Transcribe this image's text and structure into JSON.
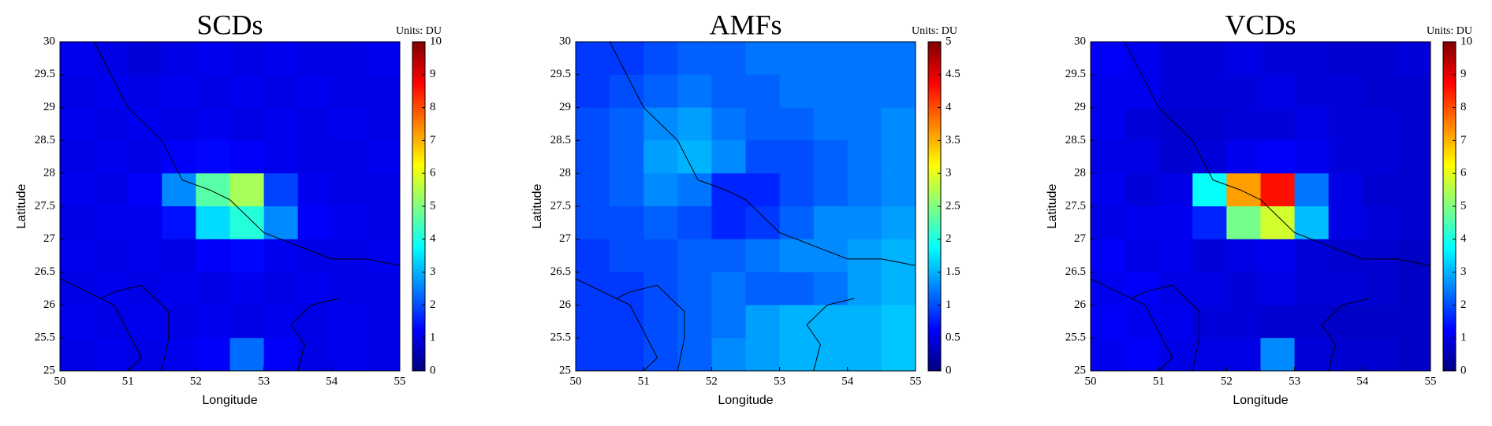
{
  "chart_data": [
    {
      "type": "heatmap",
      "title": "SCDs",
      "x_label": "Longitude",
      "y_label": "Latitude",
      "colormap": "jet",
      "colorbar_label": "Units: DU",
      "clim": [
        0,
        10
      ],
      "cticks": [
        0,
        1,
        2,
        3,
        4,
        5,
        6,
        7,
        8,
        9,
        10
      ],
      "xlim": [
        50,
        55
      ],
      "ylim": [
        25,
        30
      ],
      "xticks": [
        50,
        51,
        52,
        53,
        54,
        55
      ],
      "yticks": [
        25,
        25.5,
        26,
        26.5,
        27,
        27.5,
        28,
        28.5,
        29,
        29.5,
        30
      ],
      "x": [
        50.25,
        50.75,
        51.25,
        51.75,
        52.25,
        52.75,
        53.25,
        53.75,
        54.25,
        54.75
      ],
      "y": [
        29.75,
        29.25,
        28.75,
        28.25,
        27.75,
        27.25,
        26.75,
        26.25,
        25.75,
        25.25
      ],
      "values": [
        [
          1.1,
          1.0,
          0.9,
          1.0,
          1.1,
          1.0,
          1.1,
          1.0,
          1.0,
          1.1
        ],
        [
          1.0,
          1.1,
          1.0,
          1.1,
          1.0,
          1.1,
          1.0,
          1.1,
          1.0,
          1.0
        ],
        [
          1.1,
          1.0,
          1.1,
          1.0,
          1.1,
          1.0,
          1.1,
          1.0,
          1.1,
          1.0
        ],
        [
          1.0,
          1.1,
          1.0,
          1.2,
          1.3,
          1.2,
          1.1,
          1.0,
          1.0,
          1.1
        ],
        [
          1.1,
          1.0,
          1.2,
          2.6,
          4.6,
          5.4,
          1.9,
          1.1,
          1.0,
          1.0
        ],
        [
          1.0,
          1.1,
          1.1,
          1.4,
          3.4,
          4.1,
          2.6,
          1.2,
          1.1,
          1.0
        ],
        [
          1.1,
          1.0,
          1.1,
          1.0,
          1.2,
          1.3,
          1.1,
          1.0,
          1.0,
          1.1
        ],
        [
          1.0,
          1.1,
          1.0,
          1.1,
          1.0,
          1.1,
          1.0,
          1.1,
          1.0,
          1.0
        ],
        [
          1.1,
          1.0,
          1.1,
          1.0,
          1.1,
          1.0,
          1.1,
          1.0,
          1.1,
          1.0
        ],
        [
          1.0,
          1.1,
          1.0,
          1.1,
          1.2,
          2.3,
          1.2,
          1.0,
          1.1,
          1.0
        ]
      ]
    },
    {
      "type": "heatmap",
      "title": "AMFs",
      "x_label": "Longitude",
      "y_label": "Latitude",
      "colormap": "jet",
      "colorbar_label": "Units: DU",
      "clim": [
        0,
        5
      ],
      "cticks": [
        0,
        0.5,
        1,
        1.5,
        2,
        2.5,
        3,
        3.5,
        4,
        4.5,
        5
      ],
      "xlim": [
        50,
        55
      ],
      "ylim": [
        25,
        30
      ],
      "xticks": [
        50,
        51,
        52,
        53,
        54,
        55
      ],
      "yticks": [
        25,
        25.5,
        26,
        26.5,
        27,
        27.5,
        28,
        28.5,
        29,
        29.5,
        30
      ],
      "x": [
        50.25,
        50.75,
        51.25,
        51.75,
        52.25,
        52.75,
        53.25,
        53.75,
        54.25,
        54.75
      ],
      "y": [
        29.75,
        29.25,
        28.75,
        28.25,
        27.75,
        27.25,
        26.75,
        26.25,
        25.75,
        25.25
      ],
      "values": [
        [
          0.9,
          0.9,
          1.0,
          1.1,
          1.1,
          1.2,
          1.2,
          1.2,
          1.2,
          1.2
        ],
        [
          0.9,
          1.0,
          1.1,
          1.2,
          1.1,
          1.1,
          1.2,
          1.2,
          1.2,
          1.2
        ],
        [
          1.0,
          1.1,
          1.3,
          1.4,
          1.2,
          1.1,
          1.1,
          1.2,
          1.2,
          1.3
        ],
        [
          1.0,
          1.1,
          1.4,
          1.5,
          1.3,
          1.0,
          1.0,
          1.1,
          1.2,
          1.3
        ],
        [
          1.0,
          1.1,
          1.3,
          1.2,
          0.8,
          0.8,
          1.0,
          1.1,
          1.2,
          1.3
        ],
        [
          1.0,
          1.0,
          1.1,
          1.0,
          0.8,
          0.9,
          1.1,
          1.3,
          1.3,
          1.4
        ],
        [
          0.9,
          1.0,
          1.0,
          1.1,
          1.1,
          1.2,
          1.3,
          1.3,
          1.4,
          1.5
        ],
        [
          0.9,
          0.9,
          1.0,
          1.1,
          1.2,
          1.1,
          1.1,
          1.2,
          1.4,
          1.5
        ],
        [
          0.9,
          0.9,
          1.0,
          1.1,
          1.2,
          1.4,
          1.5,
          1.5,
          1.5,
          1.6
        ],
        [
          0.9,
          0.9,
          1.0,
          1.1,
          1.3,
          1.4,
          1.5,
          1.5,
          1.5,
          1.6
        ]
      ]
    },
    {
      "type": "heatmap",
      "title": "VCDs",
      "x_label": "Longitude",
      "y_label": "Latitude",
      "colormap": "jet",
      "colorbar_label": "Units: DU",
      "clim": [
        0,
        10
      ],
      "cticks": [
        0,
        1,
        2,
        3,
        4,
        5,
        6,
        7,
        8,
        9,
        10
      ],
      "xlim": [
        50,
        55
      ],
      "ylim": [
        25,
        30
      ],
      "xticks": [
        50,
        51,
        52,
        53,
        54,
        55
      ],
      "yticks": [
        25,
        25.5,
        26,
        26.5,
        27,
        27.5,
        28,
        28.5,
        29,
        29.5,
        30
      ],
      "x": [
        50.25,
        50.75,
        51.25,
        51.75,
        52.25,
        52.75,
        53.25,
        53.75,
        54.25,
        54.75
      ],
      "y": [
        29.75,
        29.25,
        28.75,
        28.25,
        27.75,
        27.25,
        26.75,
        26.25,
        25.75,
        25.25
      ],
      "values": [
        [
          1.2,
          1.1,
          0.9,
          0.9,
          1.0,
          0.9,
          0.9,
          0.8,
          0.8,
          0.9
        ],
        [
          1.1,
          1.1,
          0.9,
          0.9,
          0.9,
          1.0,
          0.9,
          0.9,
          0.8,
          0.8
        ],
        [
          1.1,
          0.9,
          0.8,
          0.8,
          0.9,
          0.9,
          1.0,
          0.9,
          0.9,
          0.8
        ],
        [
          1.0,
          1.0,
          0.8,
          0.9,
          1.1,
          1.2,
          1.1,
          0.9,
          0.9,
          0.8
        ],
        [
          1.1,
          0.9,
          1.0,
          3.8,
          7.2,
          8.6,
          2.4,
          1.0,
          0.8,
          0.8
        ],
        [
          1.0,
          1.1,
          1.1,
          1.6,
          4.9,
          5.8,
          3.1,
          1.0,
          0.9,
          0.8
        ],
        [
          1.2,
          1.0,
          1.1,
          0.9,
          1.0,
          1.1,
          0.9,
          0.8,
          0.8,
          0.7
        ],
        [
          1.1,
          1.2,
          1.0,
          1.0,
          0.9,
          1.0,
          0.9,
          0.9,
          0.8,
          0.7
        ],
        [
          1.2,
          1.1,
          1.1,
          0.9,
          0.9,
          0.8,
          0.8,
          0.7,
          0.7,
          0.7
        ],
        [
          1.1,
          1.2,
          1.0,
          1.0,
          1.0,
          2.6,
          0.9,
          0.8,
          0.8,
          0.7
        ]
      ]
    }
  ]
}
